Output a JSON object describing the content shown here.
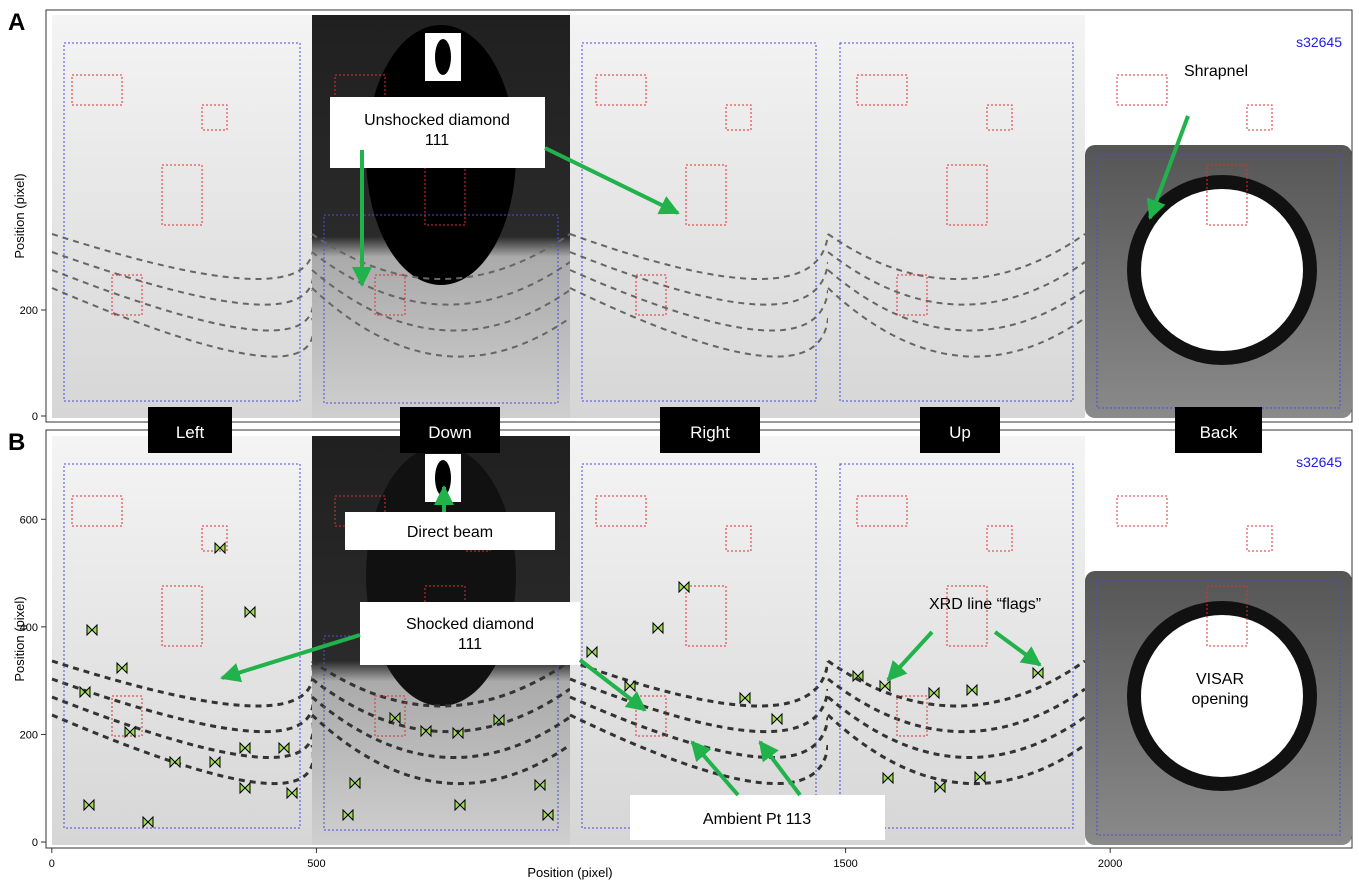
{
  "x_axis": {
    "label": "Position (pixel)",
    "ticks": [
      0,
      500,
      1500,
      2000
    ],
    "lim": [
      -11,
      2457
    ]
  },
  "view_labels": [
    "Left",
    "Down",
    "Right",
    "Up",
    "Back"
  ],
  "panels": [
    {
      "label": "A",
      "sample": "s32645",
      "y_axis": {
        "label": "Position (pixel)",
        "ticks": [
          0,
          200
        ],
        "lim": [
          0,
          766
        ]
      },
      "annotations": [
        [
          "Unshocked diamond",
          "111"
        ],
        [
          "Shrapnel"
        ]
      ]
    },
    {
      "label": "B",
      "sample": "s32645",
      "y_axis": {
        "label": "Position (pixel)",
        "ticks": [
          0,
          200,
          400,
          600
        ],
        "lim": [
          0,
          766
        ]
      },
      "annotations": [
        [
          "Direct beam"
        ],
        [
          "Shocked diamond",
          "111"
        ],
        [
          "XRD line “flags”"
        ],
        [
          "VISAR",
          "opening"
        ],
        [
          "Ambient Pt 113"
        ]
      ]
    }
  ]
}
